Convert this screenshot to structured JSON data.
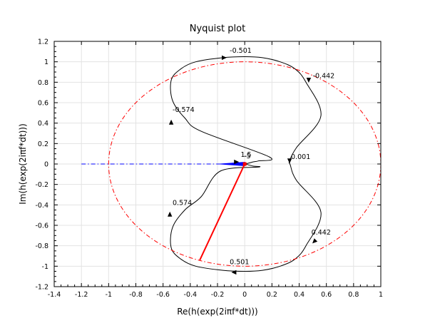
{
  "chart_data": {
    "type": "line",
    "title": "Nyquist plot",
    "xlabel": "Re(h(exp(2iπf*dt)))",
    "ylabel": "Im(h(exp(2iπf*dt)))",
    "xlim": [
      -1.4,
      1
    ],
    "ylim": [
      -1.2,
      1.2
    ],
    "x_ticks": [
      "-1.4",
      "-1.2",
      "-1",
      "-0.8",
      "-0.6",
      "-0.4",
      "-0.2",
      "0",
      "0.2",
      "0.4",
      "0.6",
      "0.8",
      "1"
    ],
    "y_ticks": [
      "-1.2",
      "-1",
      "-0.8",
      "-0.6",
      "-0.4",
      "-0.2",
      "0",
      "0.2",
      "0.4",
      "0.6",
      "0.8",
      "1",
      "1.2"
    ],
    "grid": true,
    "series": [
      {
        "role": "nyquist-curve",
        "color": "#000000",
        "points": [
          [
            0.005,
            0.0
          ],
          [
            0.06,
            0.02
          ],
          [
            0.1,
            0.03
          ],
          [
            0.18,
            0.07
          ],
          [
            -0.32,
            0.32
          ],
          [
            -0.44,
            0.45
          ],
          [
            -0.53,
            0.62
          ],
          [
            -0.54,
            0.82
          ],
          [
            -0.47,
            0.93
          ],
          [
            -0.36,
            1.0
          ],
          [
            -0.16,
            1.04
          ],
          [
            0.0,
            1.05
          ],
          [
            0.13,
            1.04
          ],
          [
            0.26,
            1.0
          ],
          [
            0.37,
            0.93
          ],
          [
            0.45,
            0.8
          ],
          [
            0.56,
            0.47
          ],
          [
            0.38,
            0.16
          ],
          [
            0.33,
            0.03
          ],
          [
            0.335,
            -0.01
          ],
          [
            0.38,
            -0.16
          ],
          [
            0.56,
            -0.47
          ],
          [
            0.45,
            -0.8
          ],
          [
            0.37,
            -0.93
          ],
          [
            0.26,
            -1.0
          ],
          [
            0.13,
            -1.04
          ],
          [
            0.0,
            -1.05
          ],
          [
            -0.16,
            -1.04
          ],
          [
            -0.36,
            -1.0
          ],
          [
            -0.47,
            -0.93
          ],
          [
            -0.54,
            -0.82
          ],
          [
            -0.53,
            -0.62
          ],
          [
            -0.44,
            -0.45
          ],
          [
            -0.32,
            -0.32
          ],
          [
            -0.18,
            -0.07
          ],
          [
            0.1,
            -0.03
          ],
          [
            0.06,
            -0.02
          ],
          [
            0.005,
            0.0
          ]
        ]
      },
      {
        "role": "unit-circle",
        "color": "#ff0000",
        "center": [
          0,
          0
        ],
        "radius": 1
      },
      {
        "role": "negative-real-axis",
        "color": "#0000ff",
        "from": [
          -1.2,
          0
        ],
        "to": [
          0,
          0
        ]
      },
      {
        "role": "gain-margin-segment",
        "color": "#0000ff",
        "from": [
          -0.18,
          0
        ],
        "to": [
          0,
          0
        ]
      },
      {
        "role": "phase-margin-segment",
        "color": "#ff0000",
        "from": [
          0,
          0
        ],
        "to": [
          -0.33,
          -0.94
        ]
      }
    ],
    "arrows": [
      {
        "at": [
          -0.54,
          0.41
        ],
        "dir": "up"
      },
      {
        "at": [
          -0.15,
          1.04
        ],
        "dir": "right"
      },
      {
        "at": [
          0.47,
          0.82
        ],
        "dir": "down"
      },
      {
        "at": [
          0.33,
          0.03
        ],
        "dir": "down"
      },
      {
        "at": [
          -0.55,
          -0.49
        ],
        "dir": "up"
      },
      {
        "at": [
          -0.08,
          -1.06
        ],
        "dir": "left"
      },
      {
        "at": [
          0.51,
          -0.76
        ],
        "dir": "down-left"
      },
      {
        "at": [
          -0.06,
          0.02
        ],
        "dir": "right"
      }
    ],
    "annotations": [
      {
        "text": "-0.501",
        "x": -0.11,
        "y": 1.09
      },
      {
        "text": "-0.442",
        "x": 0.5,
        "y": 0.84
      },
      {
        "text": "-0.574",
        "x": -0.53,
        "y": 0.51
      },
      {
        "text": "0.001",
        "x": 0.34,
        "y": 0.05
      },
      {
        "text": "1.5",
        "x": -0.03,
        "y": 0.07
      },
      {
        "text": "-5",
        "x": -0.005,
        "y": 0.055
      },
      {
        "text": "0.574",
        "x": -0.53,
        "y": -0.4
      },
      {
        "text": "0.442",
        "x": 0.49,
        "y": -0.69
      },
      {
        "text": "0.501",
        "x": -0.11,
        "y": -0.98
      }
    ]
  }
}
